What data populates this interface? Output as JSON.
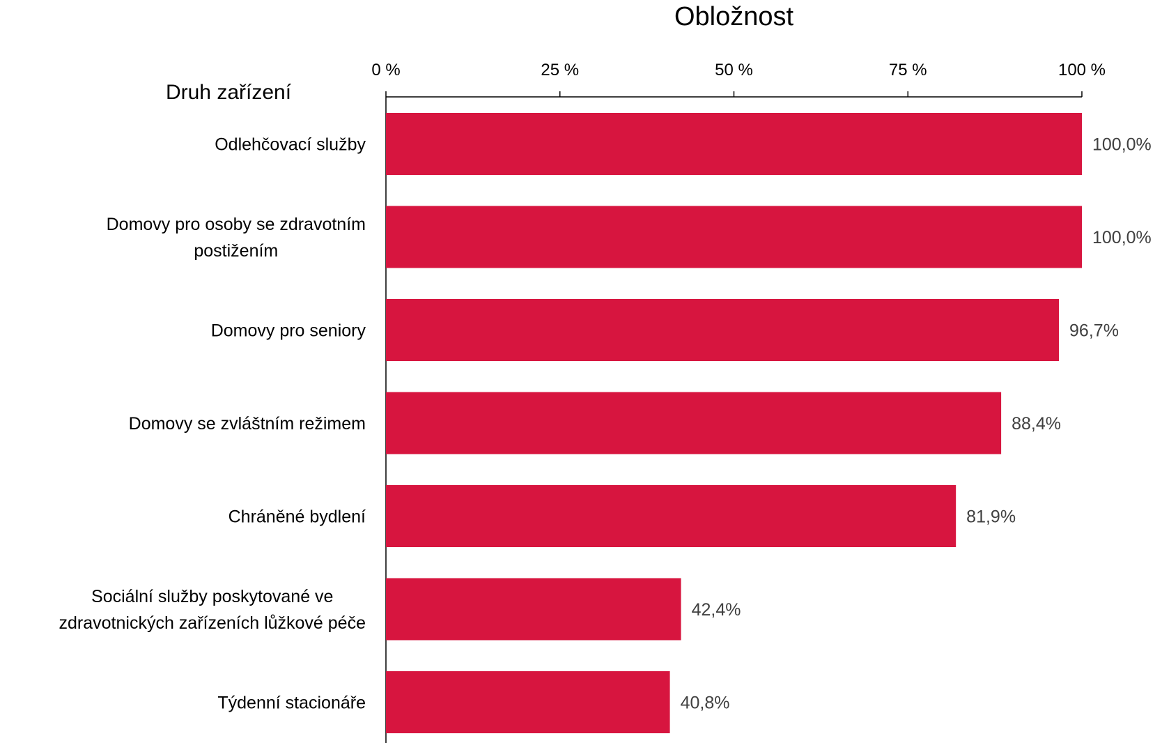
{
  "chart_data": {
    "type": "bar",
    "orientation": "horizontal",
    "title": "",
    "xlabel": "Obložnost",
    "ylabel": "Druh zařízení",
    "x_axis_position": "top",
    "xlim": [
      0,
      100
    ],
    "x_ticks": [
      0,
      25,
      50,
      75,
      100
    ],
    "x_tick_labels": [
      "0 %",
      "25 %",
      "50 %",
      "75 %",
      "100 %"
    ],
    "grid": false,
    "legend": "none",
    "bar_color": "#D7153F",
    "categories": [
      [
        "Odlehčovací služby"
      ],
      [
        "Domovy pro osoby se zdravotním",
        "postižením"
      ],
      [
        "Domovy pro seniory"
      ],
      [
        "Domovy se zvláštním režimem"
      ],
      [
        "Chráněné bydlení"
      ],
      [
        "Sociální služby poskytované ve",
        "zdravotnických zařízeních lůžkové péče"
      ],
      [
        "Týdenní stacionáře"
      ]
    ],
    "values": [
      100.0,
      100.0,
      96.7,
      88.4,
      81.9,
      42.4,
      40.8
    ],
    "data_labels": [
      "100,0%",
      "100,0%",
      "96,7%",
      "88,4%",
      "81,9%",
      "42,4%",
      "40,8%"
    ]
  }
}
